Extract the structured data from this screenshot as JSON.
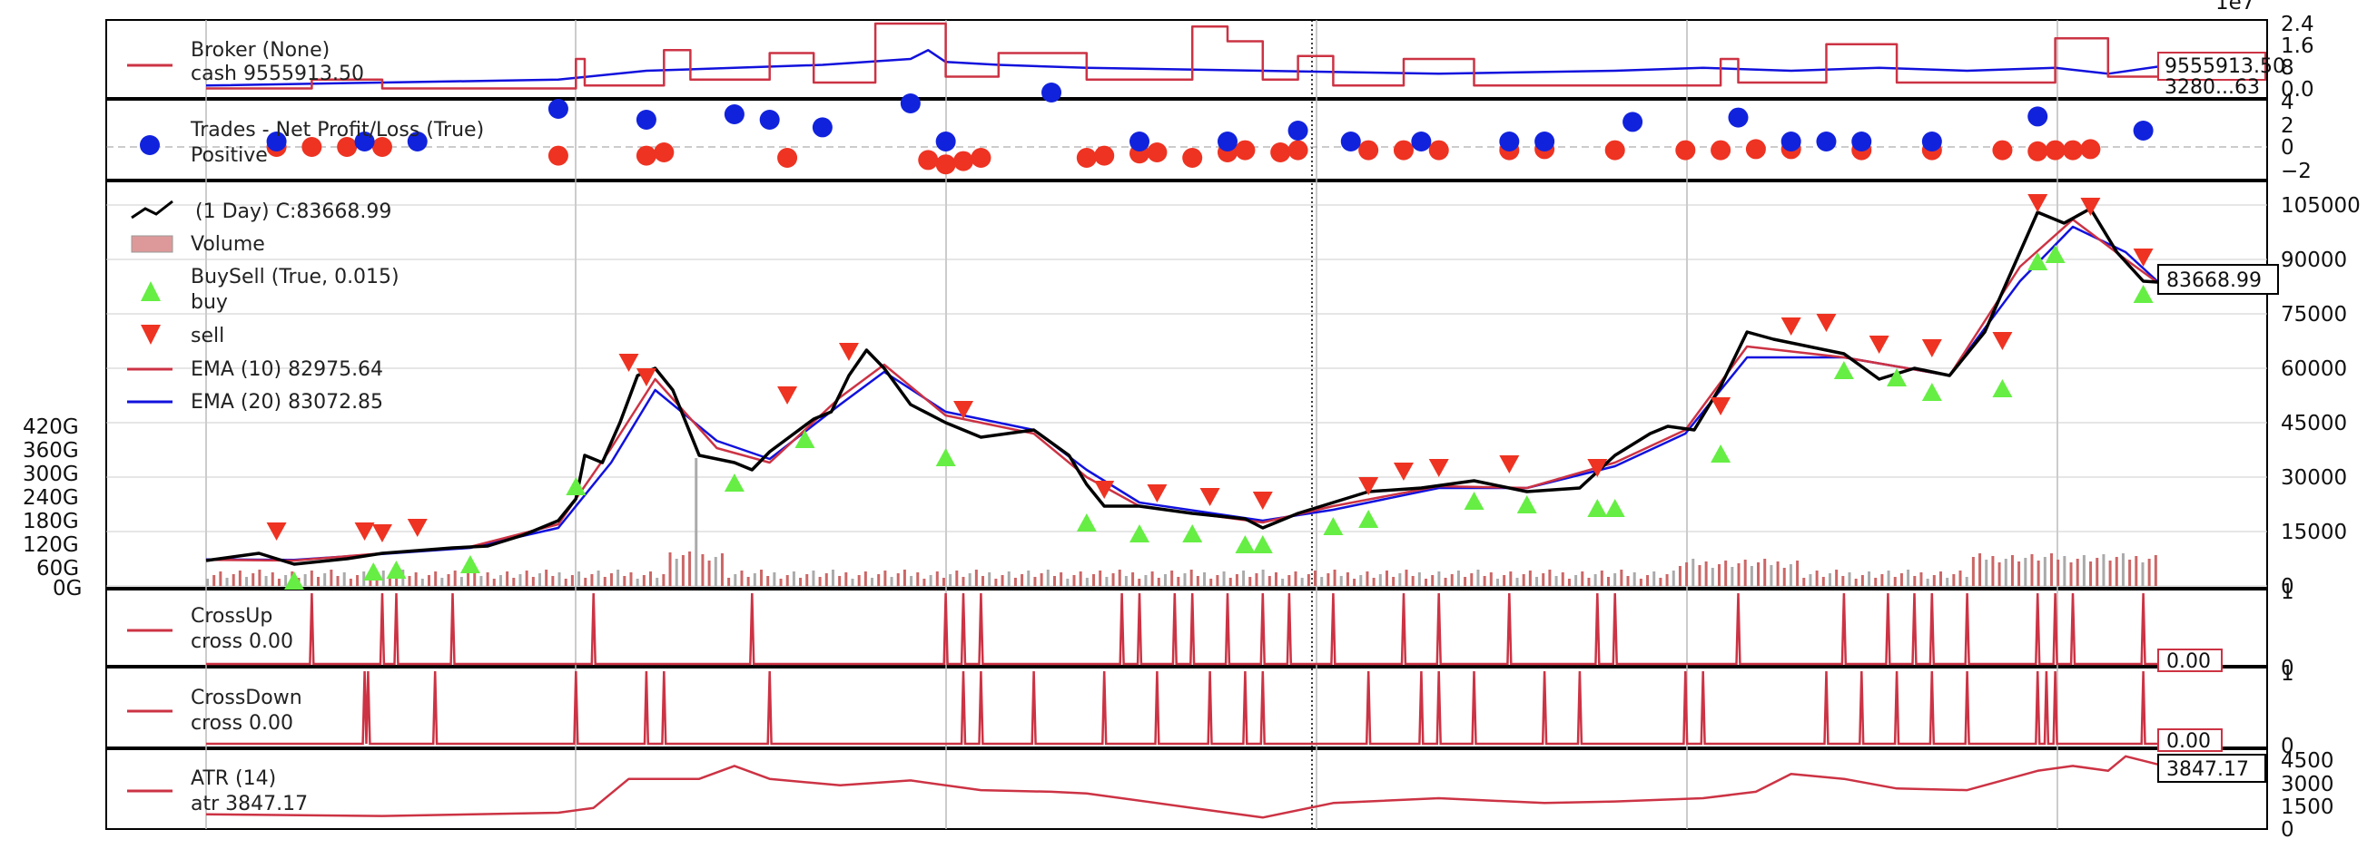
{
  "offset_label": "1e7",
  "colors": {
    "red": "#cc3344",
    "blue": "#1111dd",
    "black": "#000000",
    "buy": "#66ee44",
    "sell": "#ee3322",
    "vol_red": "#cc6666",
    "vol_gray": "#aaaaaa",
    "trade_pos": "#1122dd",
    "trade_neg": "#ee3322"
  },
  "icons": {
    "ema": "line-icon",
    "buy": "triangle-up-icon",
    "sell": "triangle-down-icon",
    "volume": "bar-icon",
    "trade": "circle-icon",
    "price": "zigzag-line-icon"
  },
  "panels": {
    "broker": {
      "title": "Broker (None)",
      "label": "cash 9555913.50",
      "value_box": "9555913.50",
      "value_box2": "3280...63",
      "ticks": [
        "2.4",
        "1.6",
        "8",
        "0.0"
      ]
    },
    "trades": {
      "title": "Trades - Net Profit/Loss (True)",
      "label": "Positive",
      "ticks": [
        "4",
        "2",
        "0",
        "−2"
      ]
    },
    "price": {
      "legend": [
        {
          "label": "(1 Day) C:83668.99"
        },
        {
          "label": "Volume"
        },
        {
          "label": "BuySell (True, 0.015)"
        },
        {
          "label": "buy"
        },
        {
          "label": "sell"
        },
        {
          "label": "EMA (10) 82975.64"
        },
        {
          "label": "EMA (20) 83072.85"
        }
      ],
      "value_box": "83668.99",
      "ticks_right": [
        "105000",
        "90000",
        "75000",
        "60000",
        "45000",
        "30000",
        "15000",
        "0"
      ],
      "ticks_left": [
        "420G",
        "360G",
        "300G",
        "240G",
        "180G",
        "120G",
        "60G",
        "0G"
      ]
    },
    "crossup": {
      "title": "CrossUp",
      "label": "cross 0.00",
      "value_box": "0.00",
      "ticks": [
        "1",
        "0"
      ]
    },
    "crossdown": {
      "title": "CrossDown",
      "label": "cross 0.00",
      "value_box": "0.00",
      "ticks": [
        "1",
        "0"
      ]
    },
    "atr": {
      "title": "ATR (14)",
      "label": "atr 3847.17",
      "value_box": "3847.17",
      "ticks": [
        "4500",
        "3000",
        "1500",
        "0"
      ]
    }
  },
  "chart_data": {
    "type": "line",
    "x_index_range": [
      0,
      1000
    ],
    "price_series": [
      {
        "name": "(1 Day) C:83668.99",
        "points": [
          [
            0,
            7000
          ],
          [
            30,
            9000
          ],
          [
            50,
            6000
          ],
          [
            80,
            7500
          ],
          [
            100,
            9000
          ],
          [
            140,
            10500
          ],
          [
            160,
            11000
          ],
          [
            180,
            14000
          ],
          [
            200,
            18000
          ],
          [
            210,
            24000
          ],
          [
            215,
            36000
          ],
          [
            225,
            34000
          ],
          [
            235,
            45000
          ],
          [
            245,
            58000
          ],
          [
            255,
            60000
          ],
          [
            265,
            54000
          ],
          [
            280,
            36000
          ],
          [
            300,
            34000
          ],
          [
            310,
            32000
          ],
          [
            320,
            37000
          ],
          [
            345,
            46000
          ],
          [
            355,
            48000
          ],
          [
            365,
            58000
          ],
          [
            375,
            65000
          ],
          [
            385,
            60000
          ],
          [
            400,
            50000
          ],
          [
            420,
            45000
          ],
          [
            440,
            41000
          ],
          [
            470,
            43000
          ],
          [
            490,
            36000
          ],
          [
            500,
            28000
          ],
          [
            510,
            22000
          ],
          [
            530,
            22000
          ],
          [
            560,
            20000
          ],
          [
            590,
            18500
          ],
          [
            600,
            16000
          ],
          [
            620,
            20000
          ],
          [
            640,
            23000
          ],
          [
            660,
            26000
          ],
          [
            690,
            27000
          ],
          [
            720,
            29000
          ],
          [
            750,
            26000
          ],
          [
            780,
            27000
          ],
          [
            800,
            36000
          ],
          [
            820,
            42000
          ],
          [
            830,
            44000
          ],
          [
            845,
            43000
          ],
          [
            860,
            55000
          ],
          [
            875,
            70000
          ],
          [
            890,
            68000
          ],
          [
            910,
            66000
          ],
          [
            930,
            64000
          ],
          [
            950,
            57000
          ],
          [
            970,
            60000
          ],
          [
            990,
            58000
          ],
          [
            1010,
            70000
          ],
          [
            1030,
            92000
          ],
          [
            1040,
            103000
          ],
          [
            1055,
            100000
          ],
          [
            1070,
            104000
          ],
          [
            1085,
            92000
          ],
          [
            1100,
            84000
          ],
          [
            1110,
            83669
          ]
        ]
      },
      {
        "name": "EMA (10) 82975.64",
        "points": [
          [
            0,
            7200
          ],
          [
            50,
            7000
          ],
          [
            100,
            9000
          ],
          [
            150,
            10800
          ],
          [
            200,
            17000
          ],
          [
            230,
            38000
          ],
          [
            255,
            57000
          ],
          [
            290,
            38000
          ],
          [
            320,
            34000
          ],
          [
            360,
            52000
          ],
          [
            385,
            61000
          ],
          [
            420,
            47000
          ],
          [
            470,
            42000
          ],
          [
            500,
            30000
          ],
          [
            530,
            22000
          ],
          [
            600,
            17500
          ],
          [
            640,
            22000
          ],
          [
            700,
            27500
          ],
          [
            750,
            27000
          ],
          [
            800,
            34000
          ],
          [
            840,
            43000
          ],
          [
            875,
            66000
          ],
          [
            930,
            63000
          ],
          [
            990,
            58000
          ],
          [
            1030,
            88000
          ],
          [
            1060,
            101000
          ],
          [
            1090,
            90000
          ],
          [
            1110,
            82976
          ]
        ]
      },
      {
        "name": "EMA (20) 83072.85",
        "points": [
          [
            0,
            7300
          ],
          [
            50,
            7200
          ],
          [
            100,
            8800
          ],
          [
            150,
            10500
          ],
          [
            200,
            16000
          ],
          [
            230,
            34000
          ],
          [
            255,
            54000
          ],
          [
            290,
            40000
          ],
          [
            320,
            35000
          ],
          [
            360,
            50000
          ],
          [
            385,
            59000
          ],
          [
            420,
            48000
          ],
          [
            470,
            43000
          ],
          [
            500,
            32000
          ],
          [
            530,
            23000
          ],
          [
            600,
            18000
          ],
          [
            640,
            21000
          ],
          [
            700,
            27000
          ],
          [
            750,
            27000
          ],
          [
            800,
            33000
          ],
          [
            840,
            42000
          ],
          [
            875,
            63000
          ],
          [
            930,
            63000
          ],
          [
            990,
            58000
          ],
          [
            1030,
            84000
          ],
          [
            1060,
            99000
          ],
          [
            1090,
            92000
          ],
          [
            1110,
            83073
          ]
        ]
      }
    ],
    "buy_signals": [
      [
        50,
        6000
      ],
      [
        95,
        8500
      ],
      [
        108,
        9000
      ],
      [
        150,
        10500
      ],
      [
        210,
        32000
      ],
      [
        300,
        33000
      ],
      [
        340,
        45000
      ],
      [
        420,
        40000
      ],
      [
        500,
        22000
      ],
      [
        530,
        19000
      ],
      [
        560,
        19000
      ],
      [
        590,
        16000
      ],
      [
        600,
        16000
      ],
      [
        640,
        21000
      ],
      [
        660,
        23000
      ],
      [
        720,
        28000
      ],
      [
        750,
        27000
      ],
      [
        790,
        26000
      ],
      [
        800,
        26000
      ],
      [
        860,
        41000
      ],
      [
        930,
        64000
      ],
      [
        960,
        62000
      ],
      [
        980,
        58000
      ],
      [
        1020,
        59000
      ],
      [
        1040,
        94000
      ],
      [
        1050,
        96000
      ],
      [
        1100,
        85000
      ]
    ],
    "sell_signals": [
      [
        40,
        10500
      ],
      [
        90,
        10500
      ],
      [
        100,
        10000
      ],
      [
        120,
        11500
      ],
      [
        240,
        57000
      ],
      [
        250,
        53000
      ],
      [
        330,
        48000
      ],
      [
        365,
        60000
      ],
      [
        430,
        44000
      ],
      [
        510,
        22000
      ],
      [
        540,
        21000
      ],
      [
        570,
        20000
      ],
      [
        600,
        19000
      ],
      [
        660,
        23000
      ],
      [
        680,
        27000
      ],
      [
        700,
        28000
      ],
      [
        740,
        29000
      ],
      [
        790,
        28000
      ],
      [
        860,
        45000
      ],
      [
        900,
        67000
      ],
      [
        920,
        68000
      ],
      [
        950,
        62000
      ],
      [
        980,
        61000
      ],
      [
        1020,
        63000
      ],
      [
        1040,
        101000
      ],
      [
        1070,
        100000
      ],
      [
        1100,
        86000
      ]
    ],
    "trades_pos": [
      [
        40,
        0.5
      ],
      [
        90,
        0.5
      ],
      [
        120,
        0.5
      ],
      [
        200,
        3.5
      ],
      [
        250,
        2.5
      ],
      [
        300,
        3
      ],
      [
        320,
        2.5
      ],
      [
        350,
        1.8
      ],
      [
        400,
        4
      ],
      [
        420,
        0.5
      ],
      [
        480,
        5
      ],
      [
        530,
        0.5
      ],
      [
        580,
        0.5
      ],
      [
        620,
        1.5
      ],
      [
        650,
        0.5
      ],
      [
        690,
        0.5
      ],
      [
        740,
        0.5
      ],
      [
        760,
        0.5
      ],
      [
        810,
        2.3
      ],
      [
        870,
        2.7
      ],
      [
        900,
        0.5
      ],
      [
        920,
        0.5
      ],
      [
        940,
        0.5
      ],
      [
        980,
        0.5
      ],
      [
        1040,
        2.8
      ],
      [
        1100,
        1.5
      ]
    ],
    "trades_neg": [
      [
        40,
        0
      ],
      [
        60,
        0
      ],
      [
        80,
        0
      ],
      [
        100,
        0
      ],
      [
        200,
        -0.8
      ],
      [
        250,
        -0.8
      ],
      [
        260,
        -0.5
      ],
      [
        330,
        -1
      ],
      [
        410,
        -1.2
      ],
      [
        420,
        -1.6
      ],
      [
        430,
        -1.3
      ],
      [
        440,
        -1
      ],
      [
        500,
        -1
      ],
      [
        510,
        -0.8
      ],
      [
        530,
        -0.6
      ],
      [
        540,
        -0.5
      ],
      [
        560,
        -1
      ],
      [
        580,
        -0.5
      ],
      [
        590,
        -0.3
      ],
      [
        610,
        -0.5
      ],
      [
        620,
        -0.3
      ],
      [
        660,
        -0.3
      ],
      [
        680,
        -0.3
      ],
      [
        700,
        -0.3
      ],
      [
        740,
        -0.3
      ],
      [
        760,
        -0.2
      ],
      [
        800,
        -0.3
      ],
      [
        840,
        -0.3
      ],
      [
        860,
        -0.3
      ],
      [
        880,
        -0.2
      ],
      [
        900,
        -0.2
      ],
      [
        940,
        -0.3
      ],
      [
        980,
        -0.3
      ],
      [
        1020,
        -0.3
      ],
      [
        1040,
        -0.4
      ],
      [
        1050,
        -0.3
      ],
      [
        1060,
        -0.3
      ],
      [
        1070,
        -0.2
      ]
    ],
    "cash_points": [
      [
        0,
        0.3
      ],
      [
        100,
        0.4
      ],
      [
        200,
        0.5
      ],
      [
        250,
        0.8
      ],
      [
        300,
        0.9
      ],
      [
        350,
        1.0
      ],
      [
        400,
        1.2
      ],
      [
        410,
        1.5
      ],
      [
        420,
        1.1
      ],
      [
        450,
        1.0
      ],
      [
        500,
        0.9
      ],
      [
        600,
        0.8
      ],
      [
        700,
        0.7
      ],
      [
        800,
        0.8
      ],
      [
        850,
        0.9
      ],
      [
        900,
        0.8
      ],
      [
        950,
        0.9
      ],
      [
        1000,
        0.8
      ],
      [
        1050,
        0.9
      ],
      [
        1080,
        0.7
      ],
      [
        1110,
        0.955
      ]
    ],
    "atr_points": [
      [
        0,
        800
      ],
      [
        100,
        700
      ],
      [
        200,
        900
      ],
      [
        220,
        1200
      ],
      [
        240,
        3000
      ],
      [
        280,
        3000
      ],
      [
        300,
        3800
      ],
      [
        320,
        3000
      ],
      [
        360,
        2600
      ],
      [
        400,
        2900
      ],
      [
        440,
        2300
      ],
      [
        480,
        2200
      ],
      [
        500,
        2100
      ],
      [
        560,
        1200
      ],
      [
        600,
        600
      ],
      [
        640,
        1500
      ],
      [
        700,
        1800
      ],
      [
        760,
        1500
      ],
      [
        800,
        1600
      ],
      [
        850,
        1800
      ],
      [
        880,
        2200
      ],
      [
        900,
        3300
      ],
      [
        930,
        3000
      ],
      [
        960,
        2400
      ],
      [
        1000,
        2300
      ],
      [
        1040,
        3500
      ],
      [
        1060,
        3800
      ],
      [
        1080,
        3500
      ],
      [
        1090,
        4400
      ],
      [
        1110,
        3847
      ]
    ]
  }
}
